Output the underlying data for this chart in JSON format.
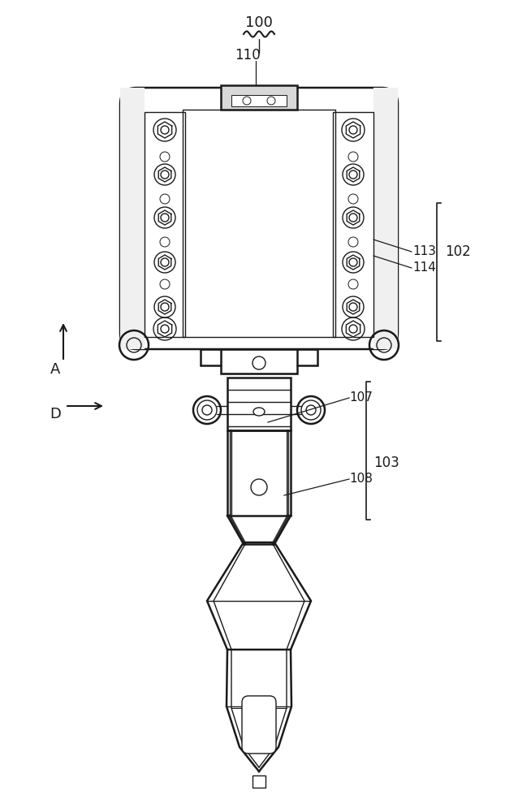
{
  "bg_color": "#ffffff",
  "line_color": "#1a1a1a",
  "figsize": [
    6.38,
    10.0
  ],
  "dpi": 100,
  "labels": {
    "100": "100",
    "110": "110",
    "102": "102",
    "113": "113",
    "114": "114",
    "107": "107",
    "103": "103",
    "108": "108",
    "A": "A",
    "D": "D"
  }
}
